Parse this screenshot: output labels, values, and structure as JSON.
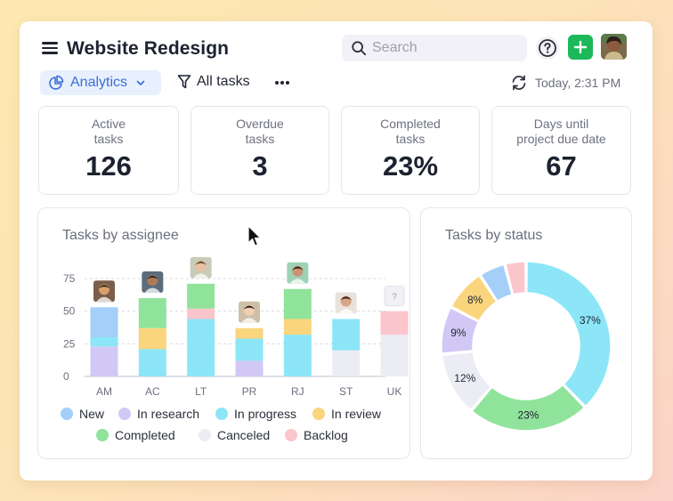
{
  "header": {
    "title": "Website Redesign",
    "search_placeholder": "Search",
    "help_icon": "help-circle-icon",
    "add_icon": "plus-icon"
  },
  "toolbar": {
    "analytics_label": "Analytics",
    "all_tasks_label": "All tasks",
    "refresh_text": "Today, 2:31 PM"
  },
  "stats": [
    {
      "label": "Active\ntasks",
      "value": "126"
    },
    {
      "label": "Overdue\ntasks",
      "value": "3"
    },
    {
      "label": "Completed\ntasks",
      "value": "23%"
    },
    {
      "label": "Days until\nproject due date",
      "value": "67"
    }
  ],
  "panels": {
    "assignee_title": "Tasks by assignee",
    "status_title": "Tasks by status"
  },
  "legend": [
    {
      "name": "New",
      "color": "#a3cff8"
    },
    {
      "name": "In research",
      "color": "#d2c8f5"
    },
    {
      "name": "In progress",
      "color": "#8ce6f7"
    },
    {
      "name": "In review",
      "color": "#fad57d"
    },
    {
      "name": "Completed",
      "color": "#90e39b"
    },
    {
      "name": "Canceled",
      "color": "#ececf5"
    },
    {
      "name": "Backlog",
      "color": "#fbc5cc"
    }
  ],
  "chart_data": [
    {
      "type": "bar",
      "title": "Tasks by assignee",
      "categories": [
        "AM",
        "AC",
        "LT",
        "PR",
        "RJ",
        "ST",
        "UK"
      ],
      "ylim": [
        0,
        75
      ],
      "yticks": [
        0,
        25,
        50,
        75
      ],
      "stacked": true,
      "series": [
        {
          "name": "In research",
          "values": [
            23,
            0,
            0,
            12,
            0,
            0,
            0
          ]
        },
        {
          "name": "Canceled",
          "values": [
            0,
            0,
            0,
            0,
            0,
            20,
            32
          ]
        },
        {
          "name": "In progress",
          "values": [
            7,
            21,
            44,
            17,
            32,
            24,
            0
          ]
        },
        {
          "name": "New",
          "values": [
            23,
            0,
            0,
            0,
            0,
            0,
            0
          ]
        },
        {
          "name": "In review",
          "values": [
            0,
            16,
            0,
            8,
            12,
            0,
            0
          ]
        },
        {
          "name": "Backlog",
          "values": [
            0,
            0,
            8,
            0,
            0,
            0,
            18
          ]
        },
        {
          "name": "Completed",
          "values": [
            0,
            23,
            19,
            0,
            23,
            0,
            0
          ]
        }
      ]
    },
    {
      "type": "pie",
      "title": "Tasks by status",
      "donut": true,
      "slices": [
        {
          "name": "In progress",
          "value": 37,
          "label": "37%"
        },
        {
          "name": "Completed",
          "value": 23,
          "label": "23%"
        },
        {
          "name": "Canceled",
          "value": 12,
          "label": "12%"
        },
        {
          "name": "In research",
          "value": 9,
          "label": "9%"
        },
        {
          "name": "In review",
          "value": 8,
          "label": "8%"
        },
        {
          "name": "New",
          "value": 5,
          "label": ""
        },
        {
          "name": "Backlog",
          "value": 4,
          "label": ""
        }
      ]
    }
  ]
}
